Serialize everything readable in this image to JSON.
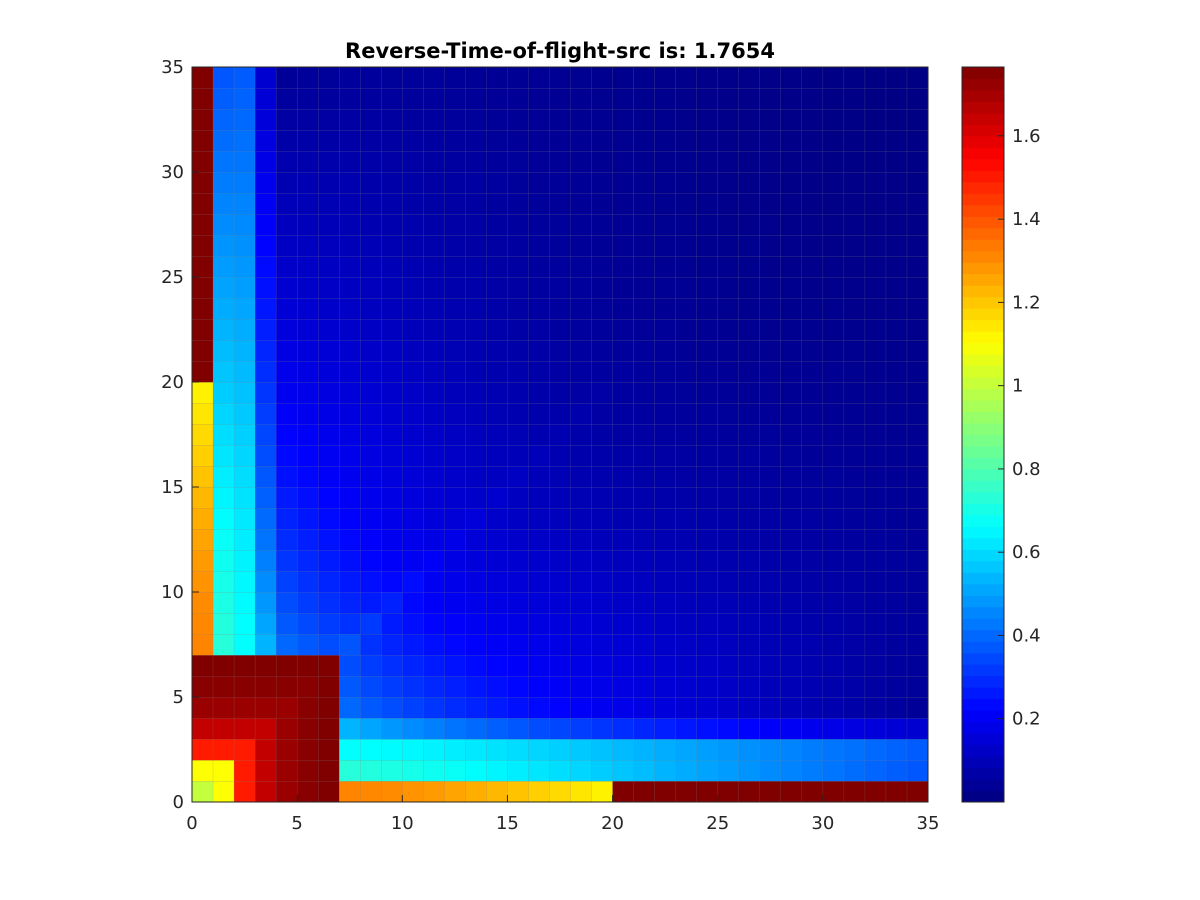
{
  "chart_data": {
    "type": "heatmap",
    "title": "Reverse-Time-of-flight-src is: 1.7654",
    "xlabel": "",
    "ylabel": "",
    "grid_size": 35,
    "xlim": [
      0,
      35
    ],
    "ylim": [
      0,
      35
    ],
    "x_ticks": [
      0,
      5,
      10,
      15,
      20,
      25,
      30,
      35
    ],
    "y_ticks": [
      0,
      5,
      10,
      15,
      20,
      25,
      30,
      35
    ],
    "colormap": "jet",
    "clim": [
      0.0,
      1.7654
    ],
    "colorbar": {
      "location": "right",
      "ticks": [
        0.2,
        0.4,
        0.6,
        0.8,
        1,
        1.2,
        1.4,
        1.6
      ]
    },
    "cell_edge_color": "#7f7f7f",
    "value_model": {
      "description": "Approximate cell values: v(i,j) = max(A(i),A(j)) + f(|i-j|) for i,j cell indices 0..34",
      "A": [
        1.0,
        1.1,
        1.5,
        1.65,
        1.72,
        1.75,
        1.7654
      ],
      "far_min": 0.01
    }
  }
}
